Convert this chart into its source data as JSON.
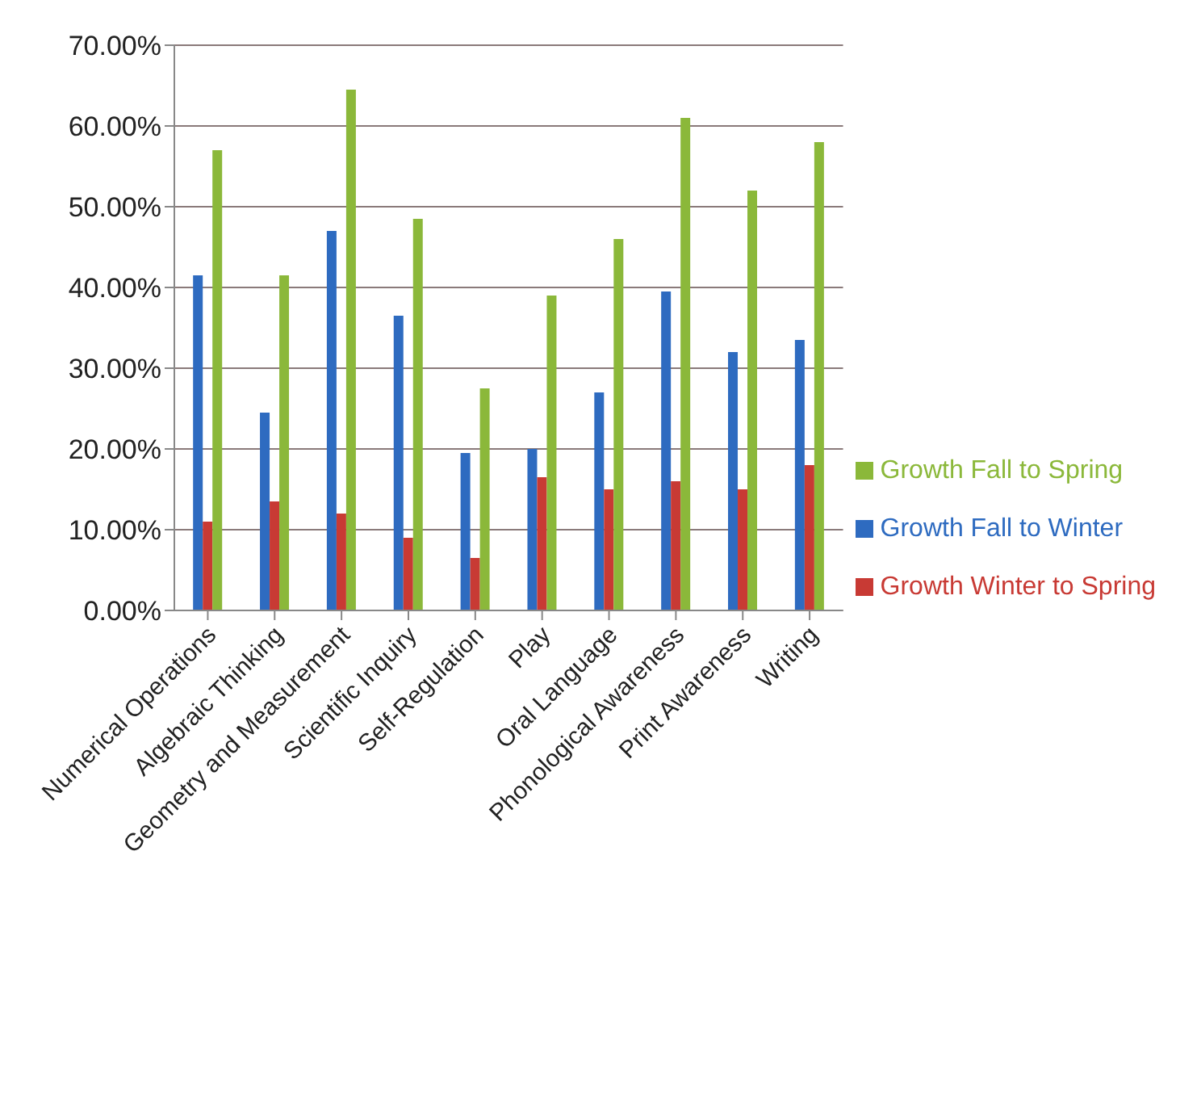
{
  "chart_data": {
    "type": "bar",
    "categories": [
      "Numerical Operations",
      "Algebraic Thinking",
      "Geometry and Measurement",
      "Scientific Inquiry",
      "Self-Regulation",
      "Play",
      "Oral Language",
      "Phonological Awareness",
      "Print Awareness",
      "Writing"
    ],
    "series": [
      {
        "name": "Growth Fall to Winter",
        "color": "#2e6bc0",
        "values": [
          41.5,
          24.5,
          47,
          36.5,
          19.5,
          20,
          27,
          39.5,
          32,
          33.5
        ]
      },
      {
        "name": "Growth Winter to Spring",
        "color": "#c83a34",
        "values": [
          11,
          13.5,
          12,
          9,
          6.5,
          16.5,
          15,
          16,
          15,
          18
        ]
      },
      {
        "name": "Growth Fall to Spring",
        "color": "#8bb83a",
        "values": [
          57,
          41.5,
          64.5,
          48.5,
          27.5,
          39,
          46,
          61,
          52,
          58
        ]
      }
    ],
    "ylim": [
      0,
      70
    ],
    "yticks": [
      {
        "value": 0,
        "label": "0.00%"
      },
      {
        "value": 10,
        "label": "10.00%"
      },
      {
        "value": 20,
        "label": "20.00%"
      },
      {
        "value": 30,
        "label": "30.00%"
      },
      {
        "value": 40,
        "label": "40.00%"
      },
      {
        "value": 50,
        "label": "50.00%"
      },
      {
        "value": 60,
        "label": "60.00%"
      },
      {
        "value": 70,
        "label": "70.00%"
      }
    ],
    "grid": "y",
    "legend": "right"
  }
}
